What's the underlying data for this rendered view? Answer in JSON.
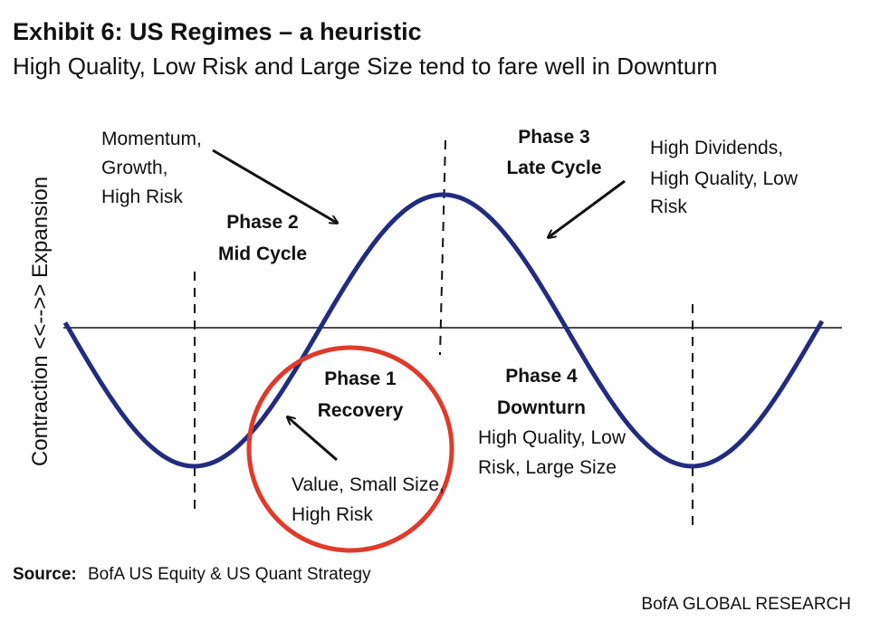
{
  "header": {
    "title": "Exhibit 6: US Regimes – a heuristic",
    "subtitle": "High Quality, Low Risk and Large Size tend to fare well in Downturn"
  },
  "axis_label": "Contraction <<-->> Expansion",
  "phases": [
    {
      "name": "Phase 1",
      "stage": "Recovery",
      "factors": [
        "Value, Small Size,",
        "High Risk"
      ]
    },
    {
      "name": "Phase 2",
      "stage": "Mid Cycle",
      "factors": [
        "Momentum,",
        "Growth,",
        "High Risk"
      ]
    },
    {
      "name": "Phase 3",
      "stage": "Late Cycle",
      "factors": [
        "High Dividends,",
        "High Quality, Low",
        "Risk"
      ]
    },
    {
      "name": "Phase 4",
      "stage": "Downturn",
      "factors": [
        "High Quality, Low",
        "Risk, Large Size"
      ]
    }
  ],
  "footer": {
    "source_label": "Source:",
    "source": "BofA US Equity & US Quant Strategy",
    "brand": "BofA GLOBAL RESEARCH"
  }
}
